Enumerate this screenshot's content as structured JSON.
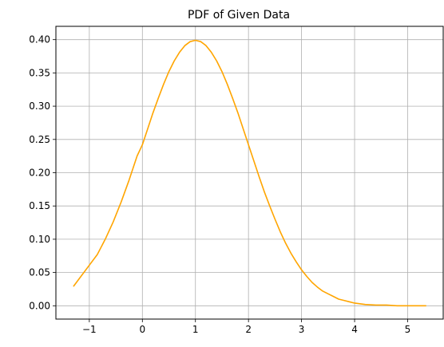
{
  "chart_data": {
    "type": "line",
    "title": "PDF of Given Data",
    "xlabel": "",
    "ylabel": "",
    "xlim": [
      -1.63,
      5.67
    ],
    "ylim": [
      -0.02,
      0.42
    ],
    "x_ticks": [
      -1,
      0,
      1,
      2,
      3,
      4,
      5
    ],
    "x_tick_labels": [
      "−1",
      "0",
      "1",
      "2",
      "3",
      "4",
      "5"
    ],
    "y_ticks": [
      0.0,
      0.05,
      0.1,
      0.15,
      0.2,
      0.25,
      0.3,
      0.35,
      0.4
    ],
    "y_tick_labels": [
      "0.00",
      "0.05",
      "0.10",
      "0.15",
      "0.20",
      "0.25",
      "0.30",
      "0.35",
      "0.40"
    ],
    "grid": true,
    "legend": "none",
    "series": [
      {
        "color": "#ffa500",
        "x": [
          -1.3,
          -1.15,
          -1.0,
          -0.85,
          -0.7,
          -0.55,
          -0.4,
          -0.25,
          -0.1,
          0.0,
          0.1,
          0.2,
          0.3,
          0.4,
          0.5,
          0.6,
          0.7,
          0.8,
          0.9,
          1.0,
          1.1,
          1.2,
          1.3,
          1.4,
          1.5,
          1.6,
          1.7,
          1.8,
          1.9,
          2.0,
          2.1,
          2.2,
          2.3,
          2.4,
          2.5,
          2.6,
          2.7,
          2.8,
          2.9,
          3.0,
          3.1,
          3.2,
          3.3,
          3.4,
          3.5,
          3.6,
          3.7,
          3.8,
          3.9,
          4.0,
          4.2,
          4.4,
          4.6,
          4.8,
          5.0,
          5.2,
          5.35
        ],
        "y": [
          0.029,
          0.045,
          0.061,
          0.077,
          0.1,
          0.126,
          0.156,
          0.189,
          0.225,
          0.242,
          0.266,
          0.29,
          0.312,
          0.333,
          0.352,
          0.368,
          0.381,
          0.391,
          0.397,
          0.399,
          0.397,
          0.391,
          0.381,
          0.368,
          0.352,
          0.333,
          0.312,
          0.29,
          0.266,
          0.242,
          0.218,
          0.194,
          0.171,
          0.15,
          0.13,
          0.111,
          0.094,
          0.079,
          0.066,
          0.054,
          0.044,
          0.035,
          0.028,
          0.022,
          0.018,
          0.014,
          0.01,
          0.008,
          0.006,
          0.004,
          0.002,
          0.001,
          0.001,
          0.0,
          0.0,
          0.0,
          0.0
        ]
      }
    ]
  }
}
